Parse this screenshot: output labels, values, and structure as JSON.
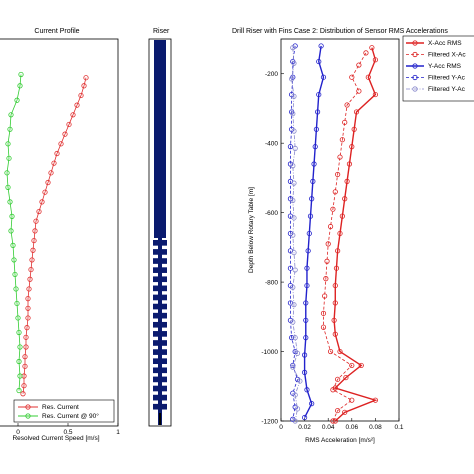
{
  "chart_data": [
    {
      "type": "line",
      "title": "Current Profile",
      "xlabel": "Resolved Current Speed [m/s]",
      "ylabel": "",
      "xlim": [
        -0.2,
        1
      ],
      "ylim": [
        1200,
        0
      ],
      "xticks": [
        0,
        0.5,
        1
      ],
      "xtick_labels": [
        "0",
        "0.5",
        "1"
      ],
      "legend_position": "bottom",
      "series": [
        {
          "name": "Res. Current",
          "color": "#e03030",
          "marker": "circle",
          "points": [
            [
              0.68,
              120
            ],
            [
              0.66,
              145
            ],
            [
              0.63,
              175
            ],
            [
              0.59,
              205
            ],
            [
              0.55,
              235
            ],
            [
              0.51,
              265
            ],
            [
              0.47,
              295
            ],
            [
              0.43,
              325
            ],
            [
              0.39,
              355
            ],
            [
              0.36,
              385
            ],
            [
              0.33,
              415
            ],
            [
              0.3,
              445
            ],
            [
              0.27,
              475
            ],
            [
              0.24,
              505
            ],
            [
              0.21,
              535
            ],
            [
              0.18,
              565
            ],
            [
              0.17,
              595
            ],
            [
              0.16,
              625
            ],
            [
              0.15,
              655
            ],
            [
              0.14,
              685
            ],
            [
              0.13,
              715
            ],
            [
              0.12,
              745
            ],
            [
              0.11,
              775
            ],
            [
              0.1,
              805
            ],
            [
              0.1,
              835
            ],
            [
              0.1,
              865
            ],
            [
              0.09,
              895
            ],
            [
              0.08,
              925
            ],
            [
              0.08,
              955
            ],
            [
              0.07,
              985
            ],
            [
              0.07,
              1015
            ],
            [
              0.06,
              1045
            ],
            [
              0.06,
              1075
            ],
            [
              0.05,
              1100
            ]
          ]
        },
        {
          "name": "Res. Current @ 90°",
          "color": "#33cc33",
          "marker": "circle",
          "points": [
            [
              0.03,
              110
            ],
            [
              0.02,
              145
            ],
            [
              -0.01,
              190
            ],
            [
              -0.07,
              235
            ],
            [
              -0.08,
              280
            ],
            [
              -0.1,
              325
            ],
            [
              -0.09,
              370
            ],
            [
              -0.11,
              415
            ],
            [
              -0.1,
              460
            ],
            [
              -0.08,
              505
            ],
            [
              -0.06,
              550
            ],
            [
              -0.07,
              595
            ],
            [
              -0.05,
              640
            ],
            [
              -0.04,
              685
            ],
            [
              -0.03,
              730
            ],
            [
              -0.02,
              775
            ],
            [
              -0.01,
              820
            ],
            [
              0.0,
              865
            ],
            [
              0.01,
              910
            ],
            [
              0.02,
              955
            ],
            [
              0.01,
              1000
            ],
            [
              0.02,
              1045
            ],
            [
              0.01,
              1090
            ]
          ]
        }
      ]
    },
    {
      "type": "table",
      "title": "Riser",
      "segments": [
        "bare",
        "fins",
        "fins",
        "fins",
        "fins",
        "fins",
        "fins",
        "fins",
        "fins",
        "fins",
        "fins",
        "fins",
        "fins",
        "fins",
        "fins",
        "fins",
        "fins",
        "fins",
        "fins",
        "fins"
      ]
    },
    {
      "type": "line",
      "title": "Drill Riser with Fins Case 2: Distribution of Sensor RMS Accelerations",
      "xlabel": "RMS Acceleration [m/s²]",
      "ylabel": "Depth Below Rotary Table [m]",
      "xlim": [
        0,
        0.1
      ],
      "ylim": [
        -1200,
        -100
      ],
      "xticks": [
        0,
        0.02,
        0.04,
        0.06,
        0.08,
        0.1
      ],
      "xtick_labels": [
        "0",
        "0.02",
        "0.04",
        "0.06",
        "0.08",
        "0.1"
      ],
      "yticks": [
        -200,
        -400,
        -600,
        -800,
        -1000,
        -1200
      ],
      "ytick_labels": [
        "-200",
        "-400",
        "-600",
        "-800",
        "-1000",
        "-1200"
      ],
      "legend_position": "top-right",
      "series": [
        {
          "name": "X-Acc RMS",
          "color": "#dd2222",
          "style": "solid",
          "marker": "circle",
          "points": [
            [
              0.077,
              -125
            ],
            [
              0.08,
              -160
            ],
            [
              0.074,
              -210
            ],
            [
              0.08,
              -260
            ],
            [
              0.064,
              -310
            ],
            [
              0.062,
              -360
            ],
            [
              0.06,
              -410
            ],
            [
              0.058,
              -460
            ],
            [
              0.056,
              -510
            ],
            [
              0.054,
              -560
            ],
            [
              0.052,
              -610
            ],
            [
              0.05,
              -660
            ],
            [
              0.048,
              -710
            ],
            [
              0.047,
              -760
            ],
            [
              0.046,
              -810
            ],
            [
              0.046,
              -860
            ],
            [
              0.045,
              -910
            ],
            [
              0.046,
              -950
            ],
            [
              0.05,
              -1000
            ],
            [
              0.068,
              -1040
            ],
            [
              0.055,
              -1075
            ],
            [
              0.046,
              -1105
            ],
            [
              0.08,
              -1140
            ],
            [
              0.054,
              -1175
            ],
            [
              0.046,
              -1200
            ]
          ]
        },
        {
          "name": "Filtered X-Acc RMS",
          "color": "#dd2222",
          "style": "dashed",
          "marker": "circle",
          "points": [
            [
              0.072,
              -140
            ],
            [
              0.066,
              -175
            ],
            [
              0.06,
              -210
            ],
            [
              0.066,
              -250
            ],
            [
              0.056,
              -290
            ],
            [
              0.054,
              -340
            ],
            [
              0.052,
              -390
            ],
            [
              0.05,
              -440
            ],
            [
              0.048,
              -490
            ],
            [
              0.046,
              -540
            ],
            [
              0.044,
              -590
            ],
            [
              0.042,
              -640
            ],
            [
              0.04,
              -690
            ],
            [
              0.039,
              -740
            ],
            [
              0.038,
              -790
            ],
            [
              0.037,
              -840
            ],
            [
              0.036,
              -890
            ],
            [
              0.036,
              -930
            ],
            [
              0.042,
              -1000
            ],
            [
              0.06,
              -1040
            ],
            [
              0.048,
              -1080
            ],
            [
              0.044,
              -1110
            ],
            [
              0.06,
              -1140
            ],
            [
              0.048,
              -1170
            ],
            [
              0.044,
              -1200
            ]
          ]
        },
        {
          "name": "Y-Acc RMS",
          "color": "#2222cc",
          "style": "solid",
          "marker": "circle",
          "points": [
            [
              0.034,
              -120
            ],
            [
              0.032,
              -165
            ],
            [
              0.036,
              -210
            ],
            [
              0.032,
              -260
            ],
            [
              0.031,
              -310
            ],
            [
              0.03,
              -360
            ],
            [
              0.029,
              -410
            ],
            [
              0.028,
              -460
            ],
            [
              0.027,
              -510
            ],
            [
              0.026,
              -560
            ],
            [
              0.025,
              -610
            ],
            [
              0.024,
              -660
            ],
            [
              0.023,
              -710
            ],
            [
              0.022,
              -760
            ],
            [
              0.022,
              -810
            ],
            [
              0.021,
              -860
            ],
            [
              0.021,
              -910
            ],
            [
              0.021,
              -960
            ],
            [
              0.02,
              -1010
            ],
            [
              0.02,
              -1060
            ],
            [
              0.022,
              -1110
            ],
            [
              0.026,
              -1150
            ],
            [
              0.02,
              -1190
            ]
          ]
        },
        {
          "name": "Filtered Y-Acc RMS",
          "color": "#2222cc",
          "style": "dashed",
          "marker": "circle",
          "points": [
            [
              0.012,
              -120
            ],
            [
              0.01,
              -165
            ],
            [
              0.01,
              -210
            ],
            [
              0.009,
              -260
            ],
            [
              0.009,
              -310
            ],
            [
              0.009,
              -360
            ],
            [
              0.008,
              -410
            ],
            [
              0.008,
              -460
            ],
            [
              0.008,
              -510
            ],
            [
              0.008,
              -560
            ],
            [
              0.008,
              -610
            ],
            [
              0.008,
              -660
            ],
            [
              0.008,
              -710
            ],
            [
              0.008,
              -760
            ],
            [
              0.008,
              -810
            ],
            [
              0.008,
              -860
            ],
            [
              0.008,
              -910
            ],
            [
              0.009,
              -960
            ],
            [
              0.012,
              -1000
            ],
            [
              0.01,
              -1040
            ],
            [
              0.014,
              -1080
            ],
            [
              0.01,
              -1120
            ],
            [
              0.012,
              -1160
            ],
            [
              0.01,
              -1195
            ]
          ]
        },
        {
          "name": "Filtered Y-Acc RMS",
          "color": "#8888cc",
          "style": "dashdot",
          "marker": "circle",
          "points": [
            [
              0.01,
              -125
            ],
            [
              0.011,
              -170
            ],
            [
              0.009,
              -215
            ],
            [
              0.011,
              -265
            ],
            [
              0.01,
              -315
            ],
            [
              0.011,
              -365
            ],
            [
              0.012,
              -415
            ],
            [
              0.01,
              -465
            ],
            [
              0.011,
              -515
            ],
            [
              0.01,
              -565
            ],
            [
              0.011,
              -615
            ],
            [
              0.01,
              -665
            ],
            [
              0.011,
              -715
            ],
            [
              0.012,
              -765
            ],
            [
              0.01,
              -815
            ],
            [
              0.011,
              -865
            ],
            [
              0.01,
              -915
            ],
            [
              0.012,
              -960
            ],
            [
              0.014,
              -1005
            ],
            [
              0.01,
              -1045
            ],
            [
              0.016,
              -1085
            ],
            [
              0.012,
              -1125
            ],
            [
              0.014,
              -1165
            ],
            [
              0.012,
              -1200
            ]
          ]
        }
      ],
      "legend_labels": [
        "X-Acc RMS",
        "Filtered X-Ac",
        "Y-Acc RMS",
        "Filtered Y-Ac",
        "Filtered Y-Ac"
      ]
    }
  ]
}
